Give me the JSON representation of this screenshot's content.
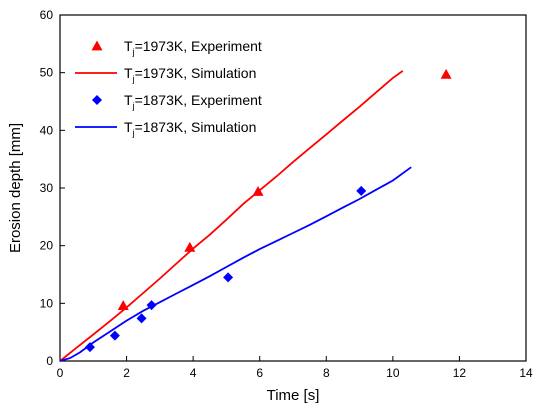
{
  "chart_data": {
    "type": "scatter",
    "xlabel": "Time [s]",
    "ylabel": "Erosion depth [mm]",
    "xlim": [
      0,
      14
    ],
    "ylim": [
      0,
      60
    ],
    "xticks": [
      0,
      2,
      4,
      6,
      8,
      10,
      12,
      14
    ],
    "yticks": [
      0,
      10,
      20,
      30,
      40,
      50,
      60
    ],
    "grid": false,
    "legend_position": "top-left",
    "series": [
      {
        "name_prefix": "T",
        "name_sub": "j",
        "name_suffix": "=1973K, Experiment",
        "kind": "scatter",
        "marker": "triangle",
        "color": "#ff0000",
        "x": [
          1.9,
          3.9,
          5.95,
          11.6
        ],
        "y": [
          9.6,
          19.7,
          29.4,
          49.7
        ]
      },
      {
        "name_prefix": "T",
        "name_sub": "j",
        "name_suffix": "=1973K, Simulation",
        "kind": "line",
        "color": "#ff0000",
        "x": [
          0,
          0.5,
          1,
          1.5,
          2,
          2.5,
          3,
          3.5,
          4,
          4.5,
          5,
          5.5,
          6,
          6.5,
          7,
          7.5,
          8,
          8.5,
          9,
          9.5,
          10,
          10.3
        ],
        "y": [
          0,
          2.3,
          4.6,
          6.9,
          9.3,
          11.8,
          14.3,
          16.9,
          19.5,
          21.9,
          24.5,
          27.2,
          29.6,
          32.0,
          34.5,
          36.9,
          39.3,
          41.7,
          44.1,
          46.6,
          49.1,
          50.3
        ]
      },
      {
        "name_prefix": "T",
        "name_sub": "j",
        "name_suffix": "=1873K, Experiment",
        "kind": "scatter",
        "marker": "diamond",
        "color": "#0000ff",
        "x": [
          0.9,
          1.65,
          2.45,
          2.75,
          5.05,
          9.05
        ],
        "y": [
          2.4,
          4.4,
          7.4,
          9.7,
          14.5,
          29.5
        ]
      },
      {
        "name_prefix": "T",
        "name_sub": "j",
        "name_suffix": "=1873K, Simulation",
        "kind": "line",
        "color": "#0000ff",
        "x": [
          0,
          0.3,
          0.6,
          1,
          1.5,
          2,
          2.5,
          3,
          3.5,
          4,
          4.5,
          5,
          5.5,
          6,
          6.5,
          7,
          7.5,
          8,
          8.5,
          9,
          9.5,
          10,
          10.55
        ],
        "y": [
          0,
          0.5,
          1.5,
          3.2,
          5.1,
          7.0,
          8.7,
          10.2,
          11.7,
          13.2,
          14.7,
          16.3,
          17.9,
          19.4,
          20.8,
          22.2,
          23.6,
          25.1,
          26.6,
          28.1,
          29.7,
          31.3,
          33.6
        ]
      }
    ]
  }
}
